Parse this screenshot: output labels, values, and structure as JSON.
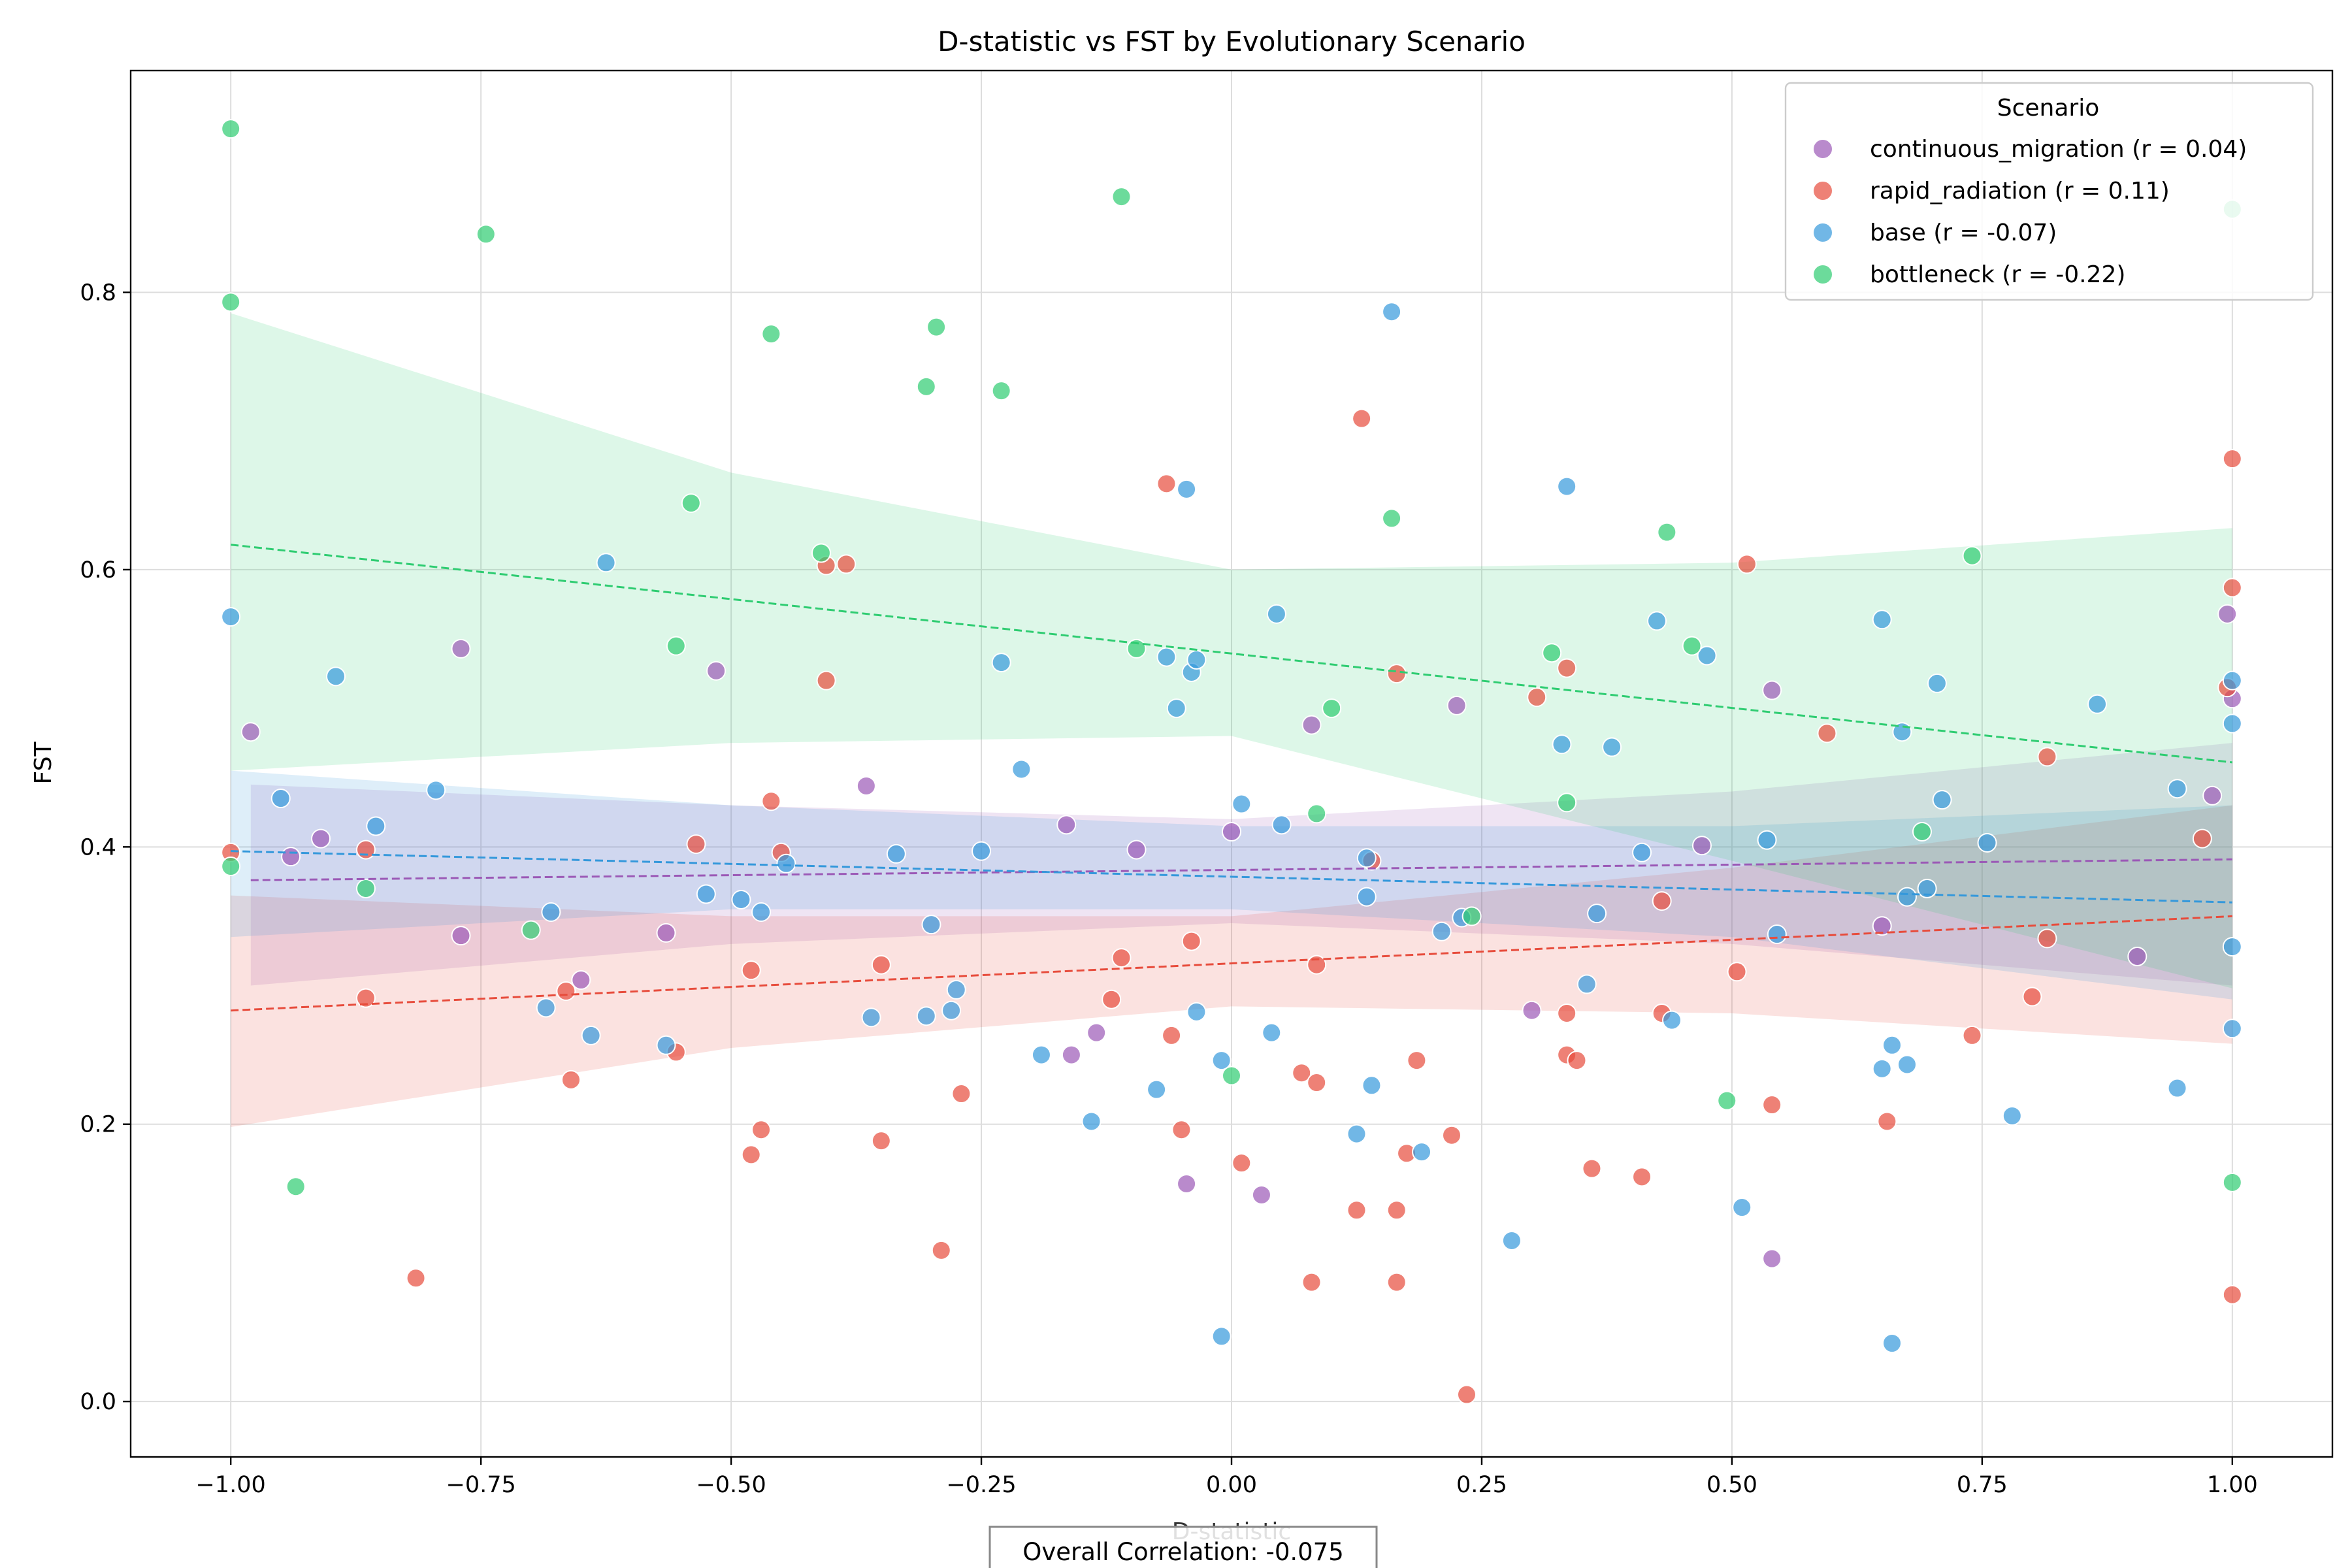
{
  "chart_data": {
    "type": "scatter",
    "title": "D-statistic vs FST by Evolutionary Scenario",
    "xlabel": "D-statistic",
    "ylabel": "FST",
    "xlim": [
      -1.1,
      1.1
    ],
    "ylim": [
      -0.04,
      0.96
    ],
    "x_ticks": [
      -1.0,
      -0.75,
      -0.5,
      -0.25,
      0.0,
      0.25,
      0.5,
      0.75,
      1.0
    ],
    "x_tick_labels": [
      "−1.00",
      "−0.75",
      "−0.50",
      "−0.25",
      "0.00",
      "0.25",
      "0.50",
      "0.75",
      "1.00"
    ],
    "y_ticks": [
      0.0,
      0.2,
      0.4,
      0.6,
      0.8
    ],
    "y_tick_labels": [
      "0.0",
      "0.2",
      "0.4",
      "0.6",
      "0.8"
    ],
    "grid": true,
    "legend_title": "Scenario",
    "legend_position": "top-right",
    "annotation": "Overall Correlation: -0.075",
    "series": [
      {
        "name": "continuous_migration (r = 0.04)",
        "color": "#9b59b6",
        "trend": {
          "x": [
            -0.98,
            1.0
          ],
          "y": [
            0.376,
            0.391
          ]
        },
        "band": {
          "x": [
            -0.98,
            -0.5,
            0.0,
            0.5,
            1.0
          ],
          "upper": [
            0.445,
            0.43,
            0.42,
            0.44,
            0.475
          ],
          "lower": [
            0.3,
            0.33,
            0.345,
            0.33,
            0.3
          ]
        },
        "points": [
          [
            -0.98,
            0.483
          ],
          [
            -0.94,
            0.393
          ],
          [
            -0.91,
            0.406
          ],
          [
            -0.77,
            0.543
          ],
          [
            -0.77,
            0.336
          ],
          [
            -0.65,
            0.304
          ],
          [
            -0.565,
            0.338
          ],
          [
            -0.515,
            0.527
          ],
          [
            -0.365,
            0.444
          ],
          [
            -0.165,
            0.416
          ],
          [
            -0.16,
            0.25
          ],
          [
            -0.135,
            0.266
          ],
          [
            -0.095,
            0.398
          ],
          [
            -0.045,
            0.157
          ],
          [
            0.0,
            0.411
          ],
          [
            0.03,
            0.149
          ],
          [
            0.08,
            0.488
          ],
          [
            0.225,
            0.502
          ],
          [
            0.3,
            0.282
          ],
          [
            0.47,
            0.401
          ],
          [
            0.54,
            0.513
          ],
          [
            0.54,
            0.103
          ],
          [
            0.65,
            0.343
          ],
          [
            0.905,
            0.321
          ],
          [
            0.98,
            0.437
          ],
          [
            0.995,
            0.568
          ],
          [
            1.0,
            0.507
          ]
        ]
      },
      {
        "name": "rapid_radiation (r = 0.11)",
        "color": "#e74c3c",
        "trend": {
          "x": [
            -1.0,
            1.0
          ],
          "y": [
            0.282,
            0.35
          ]
        },
        "band": {
          "x": [
            -1.0,
            -0.5,
            0.0,
            0.5,
            1.0
          ],
          "upper": [
            0.365,
            0.35,
            0.35,
            0.385,
            0.43
          ],
          "lower": [
            0.198,
            0.255,
            0.285,
            0.28,
            0.258
          ]
        },
        "points": [
          [
            -1.0,
            0.396
          ],
          [
            -0.865,
            0.291
          ],
          [
            -0.865,
            0.398
          ],
          [
            -0.815,
            0.089
          ],
          [
            -0.665,
            0.296
          ],
          [
            -0.66,
            0.232
          ],
          [
            -0.555,
            0.252
          ],
          [
            -0.535,
            0.402
          ],
          [
            -0.48,
            0.311
          ],
          [
            -0.48,
            0.178
          ],
          [
            -0.47,
            0.196
          ],
          [
            -0.46,
            0.433
          ],
          [
            -0.45,
            0.396
          ],
          [
            -0.405,
            0.603
          ],
          [
            -0.405,
            0.52
          ],
          [
            -0.385,
            0.604
          ],
          [
            -0.35,
            0.315
          ],
          [
            -0.35,
            0.188
          ],
          [
            -0.29,
            0.109
          ],
          [
            -0.27,
            0.222
          ],
          [
            -0.12,
            0.29
          ],
          [
            -0.11,
            0.32
          ],
          [
            -0.065,
            0.662
          ],
          [
            -0.06,
            0.264
          ],
          [
            -0.05,
            0.196
          ],
          [
            -0.04,
            0.332
          ],
          [
            0.01,
            0.172
          ],
          [
            0.07,
            0.237
          ],
          [
            0.08,
            0.086
          ],
          [
            0.085,
            0.315
          ],
          [
            0.085,
            0.23
          ],
          [
            0.125,
            0.138
          ],
          [
            0.13,
            0.709
          ],
          [
            0.14,
            0.39
          ],
          [
            0.165,
            0.525
          ],
          [
            0.165,
            0.138
          ],
          [
            0.165,
            0.086
          ],
          [
            0.175,
            0.179
          ],
          [
            0.185,
            0.246
          ],
          [
            0.22,
            0.192
          ],
          [
            0.235,
            0.005
          ],
          [
            0.305,
            0.508
          ],
          [
            0.335,
            0.529
          ],
          [
            0.335,
            0.28
          ],
          [
            0.335,
            0.25
          ],
          [
            0.345,
            0.246
          ],
          [
            0.36,
            0.168
          ],
          [
            0.41,
            0.162
          ],
          [
            0.43,
            0.361
          ],
          [
            0.43,
            0.28
          ],
          [
            0.505,
            0.31
          ],
          [
            0.515,
            0.604
          ],
          [
            0.54,
            0.214
          ],
          [
            0.595,
            0.482
          ],
          [
            0.655,
            0.202
          ],
          [
            0.74,
            0.264
          ],
          [
            0.8,
            0.292
          ],
          [
            0.815,
            0.465
          ],
          [
            0.815,
            0.334
          ],
          [
            0.97,
            0.406
          ],
          [
            0.995,
            0.515
          ],
          [
            1.0,
            0.68
          ],
          [
            1.0,
            0.587
          ],
          [
            1.0,
            0.077
          ]
        ]
      },
      {
        "name": "base (r = -0.07)",
        "color": "#3498db",
        "trend": {
          "x": [
            -1.0,
            1.0
          ],
          "y": [
            0.397,
            0.36
          ]
        },
        "band": {
          "x": [
            -1.0,
            -0.5,
            0.0,
            0.5,
            1.0
          ],
          "upper": [
            0.455,
            0.43,
            0.415,
            0.415,
            0.43
          ],
          "lower": [
            0.335,
            0.355,
            0.355,
            0.335,
            0.29
          ]
        },
        "points": [
          [
            -1.0,
            0.566
          ],
          [
            -0.95,
            0.435
          ],
          [
            -0.895,
            0.523
          ],
          [
            -0.855,
            0.415
          ],
          [
            -0.795,
            0.441
          ],
          [
            -0.685,
            0.284
          ],
          [
            -0.68,
            0.353
          ],
          [
            -0.64,
            0.264
          ],
          [
            -0.625,
            0.605
          ],
          [
            -0.565,
            0.257
          ],
          [
            -0.525,
            0.366
          ],
          [
            -0.49,
            0.362
          ],
          [
            -0.47,
            0.353
          ],
          [
            -0.445,
            0.388
          ],
          [
            -0.36,
            0.277
          ],
          [
            -0.335,
            0.395
          ],
          [
            -0.305,
            0.278
          ],
          [
            -0.3,
            0.344
          ],
          [
            -0.28,
            0.282
          ],
          [
            -0.275,
            0.297
          ],
          [
            -0.23,
            0.533
          ],
          [
            -0.25,
            0.397
          ],
          [
            -0.21,
            0.456
          ],
          [
            -0.19,
            0.25
          ],
          [
            -0.14,
            0.202
          ],
          [
            -0.075,
            0.225
          ],
          [
            -0.065,
            0.537
          ],
          [
            -0.055,
            0.5
          ],
          [
            -0.045,
            0.658
          ],
          [
            -0.04,
            0.526
          ],
          [
            -0.035,
            0.535
          ],
          [
            -0.035,
            0.281
          ],
          [
            -0.01,
            0.246
          ],
          [
            -0.01,
            0.047
          ],
          [
            0.01,
            0.431
          ],
          [
            0.04,
            0.266
          ],
          [
            0.045,
            0.568
          ],
          [
            0.05,
            0.416
          ],
          [
            0.125,
            0.193
          ],
          [
            0.135,
            0.392
          ],
          [
            0.135,
            0.364
          ],
          [
            0.14,
            0.228
          ],
          [
            0.16,
            0.786
          ],
          [
            0.19,
            0.18
          ],
          [
            0.21,
            0.339
          ],
          [
            0.23,
            0.349
          ],
          [
            0.28,
            0.116
          ],
          [
            0.33,
            0.474
          ],
          [
            0.335,
            0.66
          ],
          [
            0.355,
            0.301
          ],
          [
            0.365,
            0.352
          ],
          [
            0.38,
            0.472
          ],
          [
            0.41,
            0.396
          ],
          [
            0.425,
            0.563
          ],
          [
            0.44,
            0.275
          ],
          [
            0.475,
            0.538
          ],
          [
            0.51,
            0.14
          ],
          [
            0.535,
            0.405
          ],
          [
            0.545,
            0.337
          ],
          [
            0.65,
            0.24
          ],
          [
            0.65,
            0.564
          ],
          [
            0.66,
            0.257
          ],
          [
            0.66,
            0.042
          ],
          [
            0.67,
            0.483
          ],
          [
            0.675,
            0.243
          ],
          [
            0.675,
            0.364
          ],
          [
            0.695,
            0.37
          ],
          [
            0.705,
            0.518
          ],
          [
            0.71,
            0.434
          ],
          [
            0.755,
            0.403
          ],
          [
            0.78,
            0.206
          ],
          [
            0.865,
            0.503
          ],
          [
            0.945,
            0.442
          ],
          [
            0.945,
            0.226
          ],
          [
            1.0,
            0.52
          ],
          [
            1.0,
            0.489
          ],
          [
            1.0,
            0.328
          ],
          [
            1.0,
            0.269
          ]
        ]
      },
      {
        "name": "bottleneck (r = -0.22)",
        "color": "#2ecc71",
        "trend": {
          "x": [
            -1.0,
            1.0
          ],
          "y": [
            0.618,
            0.461
          ]
        },
        "band": {
          "x": [
            -1.0,
            -0.5,
            0.0,
            0.5,
            1.0
          ],
          "upper": [
            0.785,
            0.67,
            0.6,
            0.605,
            0.63
          ],
          "lower": [
            0.455,
            0.475,
            0.48,
            0.39,
            0.298
          ]
        },
        "points": [
          [
            -1.0,
            0.918
          ],
          [
            -1.0,
            0.793
          ],
          [
            -1.0,
            0.386
          ],
          [
            -0.935,
            0.155
          ],
          [
            -0.865,
            0.37
          ],
          [
            -0.745,
            0.842
          ],
          [
            -0.7,
            0.34
          ],
          [
            -0.555,
            0.545
          ],
          [
            -0.54,
            0.648
          ],
          [
            -0.46,
            0.77
          ],
          [
            -0.41,
            0.612
          ],
          [
            -0.305,
            0.732
          ],
          [
            -0.295,
            0.775
          ],
          [
            -0.23,
            0.729
          ],
          [
            -0.11,
            0.869
          ],
          [
            -0.095,
            0.543
          ],
          [
            0.0,
            0.235
          ],
          [
            0.085,
            0.424
          ],
          [
            0.1,
            0.5
          ],
          [
            0.16,
            0.637
          ],
          [
            0.24,
            0.35
          ],
          [
            0.32,
            0.54
          ],
          [
            0.335,
            0.432
          ],
          [
            0.435,
            0.627
          ],
          [
            0.46,
            0.545
          ],
          [
            0.495,
            0.217
          ],
          [
            0.69,
            0.411
          ],
          [
            0.74,
            0.61
          ],
          [
            1.0,
            0.86
          ],
          [
            1.0,
            0.158
          ]
        ]
      }
    ]
  }
}
